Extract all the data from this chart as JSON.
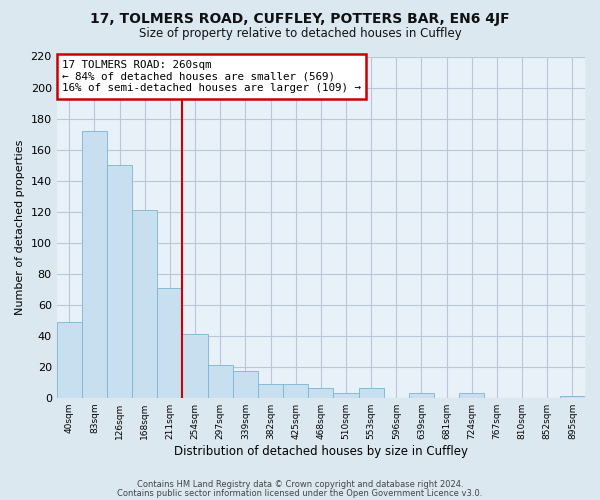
{
  "title": "17, TOLMERS ROAD, CUFFLEY, POTTERS BAR, EN6 4JF",
  "subtitle": "Size of property relative to detached houses in Cuffley",
  "xlabel": "Distribution of detached houses by size in Cuffley",
  "ylabel": "Number of detached properties",
  "bar_color": "#c8dff0",
  "bar_edge_color": "#7ab4d4",
  "categories": [
    "40sqm",
    "83sqm",
    "126sqm",
    "168sqm",
    "211sqm",
    "254sqm",
    "297sqm",
    "339sqm",
    "382sqm",
    "425sqm",
    "468sqm",
    "510sqm",
    "553sqm",
    "596sqm",
    "639sqm",
    "681sqm",
    "724sqm",
    "767sqm",
    "810sqm",
    "852sqm",
    "895sqm"
  ],
  "values": [
    49,
    172,
    150,
    121,
    71,
    41,
    21,
    17,
    9,
    9,
    6,
    3,
    6,
    0,
    3,
    0,
    3,
    0,
    0,
    0,
    1
  ],
  "vline_color": "#cc0000",
  "annotation_text": "17 TOLMERS ROAD: 260sqm\n← 84% of detached houses are smaller (569)\n16% of semi-detached houses are larger (109) →",
  "annotation_box_color": "white",
  "annotation_box_edge": "#cc0000",
  "ylim": [
    0,
    220
  ],
  "yticks": [
    0,
    20,
    40,
    60,
    80,
    100,
    120,
    140,
    160,
    180,
    200,
    220
  ],
  "footer1": "Contains HM Land Registry data © Crown copyright and database right 2024.",
  "footer2": "Contains public sector information licensed under the Open Government Licence v3.0.",
  "bg_color": "#dce8f0",
  "plot_bg_color": "#e8f0f8",
  "grid_color": "#b8c8d8",
  "title_fontsize": 10,
  "subtitle_fontsize": 8.5
}
